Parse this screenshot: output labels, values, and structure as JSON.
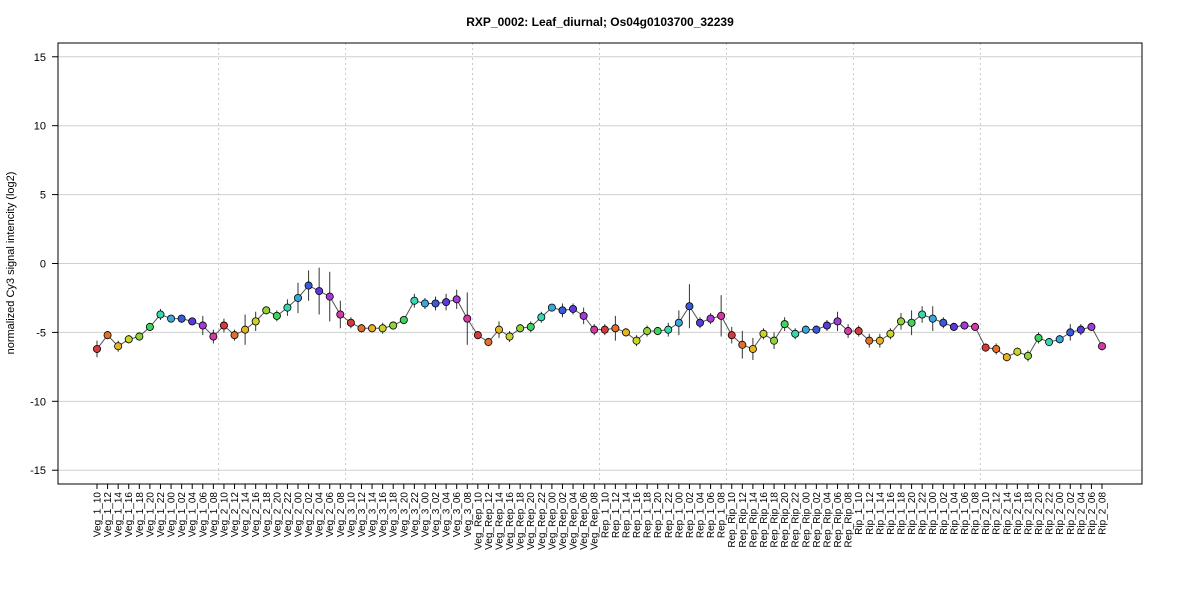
{
  "chart_data": {
    "type": "line",
    "title": "RXP_0002: Leaf_diurnal; Os04g0103700_32239",
    "xlabel": "",
    "ylabel": "normalized Cy3 signal intencity (log2)",
    "ylim": [
      -16,
      16
    ],
    "yticks": [
      -15,
      -10,
      -5,
      0,
      5,
      10,
      15
    ],
    "grid": true,
    "colors": {
      "grid": "#cfcfcf",
      "separator": "#c8c8c8",
      "line": "#555555",
      "errorbar": "#333333",
      "point_outline": "#000000"
    },
    "separators_after_index": [
      11,
      23,
      35,
      47,
      59,
      71,
      83
    ],
    "categories": [
      "Veg_1_10",
      "Veg_1_12",
      "Veg_1_14",
      "Veg_1_16",
      "Veg_1_18",
      "Veg_1_20",
      "Veg_1_22",
      "Veg_1_00",
      "Veg_1_02",
      "Veg_1_04",
      "Veg_1_06",
      "Veg_1_08",
      "Veg_2_10",
      "Veg_2_12",
      "Veg_2_14",
      "Veg_2_16",
      "Veg_2_18",
      "Veg_2_20",
      "Veg_2_22",
      "Veg_2_00",
      "Veg_2_02",
      "Veg_2_04",
      "Veg_2_06",
      "Veg_2_08",
      "Veg_3_10",
      "Veg_3_12",
      "Veg_3_14",
      "Veg_3_16",
      "Veg_3_18",
      "Veg_3_20",
      "Veg_3_22",
      "Veg_3_00",
      "Veg_3_02",
      "Veg_3_04",
      "Veg_3_06",
      "Veg_3_08",
      "Veg_Rep_10",
      "Veg_Rep_12",
      "Veg_Rep_14",
      "Veg_Rep_16",
      "Veg_Rep_18",
      "Veg_Rep_20",
      "Veg_Rep_22",
      "Veg_Rep_00",
      "Veg_Rep_02",
      "Veg_Rep_04",
      "Veg_Rep_06",
      "Veg_Rep_08",
      "Rep_1_10",
      "Rep_1_12",
      "Rep_1_14",
      "Rep_1_16",
      "Rep_1_18",
      "Rep_1_20",
      "Rep_1_22",
      "Rep_1_00",
      "Rep_1_02",
      "Rep_1_04",
      "Rep_1_06",
      "Rep_1_08",
      "Rep_Rip_10",
      "Rep_Rip_12",
      "Rep_Rip_14",
      "Rep_Rip_16",
      "Rep_Rip_18",
      "Rep_Rip_20",
      "Rep_Rip_22",
      "Rep_Rip_00",
      "Rep_Rip_02",
      "Rep_Rip_04",
      "Rep_Rip_06",
      "Rep_Rip_08",
      "Rip_1_10",
      "Rip_1_12",
      "Rip_1_14",
      "Rip_1_16",
      "Rip_1_18",
      "Rip_1_20",
      "Rip_1_22",
      "Rip_1_00",
      "Rip_1_02",
      "Rip_1_04",
      "Rip_1_06",
      "Rip_1_08",
      "Rip_2_10",
      "Rip_2_12",
      "Rip_2_14",
      "Rip_2_16",
      "Rip_2_18",
      "Rip_2_20",
      "Rip_2_22",
      "Rip_2_00",
      "Rip_2_02",
      "Rip_2_04",
      "Rip_2_06",
      "Rip_2_08"
    ],
    "series": [
      {
        "values": [
          -6.2,
          -5.2,
          -6.0,
          -5.5,
          -5.3,
          -4.6,
          -3.7,
          -4.0,
          -4.0,
          -4.2,
          -4.5,
          -5.3,
          -4.5,
          -5.2,
          -4.8,
          -4.2,
          -3.4,
          -3.8,
          -3.2,
          -2.5,
          -1.6,
          -2.0,
          -2.4,
          -3.7,
          -4.3,
          -4.7,
          -4.7,
          -4.7,
          -4.5,
          -4.1,
          -2.7,
          -2.9,
          -2.9,
          -2.8,
          -2.6,
          -4.0,
          -5.2,
          -5.7,
          -4.8,
          -5.3,
          -4.7,
          -4.6,
          -3.9,
          -3.2,
          -3.4,
          -3.3,
          -3.8,
          -4.8,
          -4.8,
          -4.7,
          -5.0,
          -5.6,
          -4.9,
          -4.9,
          -4.8,
          -4.3,
          -3.1,
          -4.3,
          -4.0,
          -3.8,
          -5.2,
          -5.9,
          -6.2,
          -5.1,
          -5.6,
          -4.4,
          -5.1,
          -4.8,
          -4.8,
          -4.5,
          -4.2,
          -4.9,
          -4.9,
          -5.6,
          -5.6,
          -5.1,
          -4.2,
          -4.3,
          -3.7,
          -4.0,
          -4.3,
          -4.6,
          -4.5,
          -4.6,
          -6.1,
          -6.2,
          -6.8,
          -6.4,
          -6.7,
          -5.4,
          -5.7,
          -5.5,
          -5.0,
          -4.8,
          -4.6,
          -6.0
        ],
        "errors": [
          0.6,
          0.3,
          0.4,
          0.3,
          0.3,
          0.3,
          0.4,
          0.2,
          0.3,
          0.2,
          0.7,
          0.5,
          0.5,
          0.4,
          1.1,
          0.7,
          0.3,
          0.4,
          0.6,
          1.1,
          1.1,
          1.7,
          1.8,
          1.0,
          0.4,
          0.3,
          0.3,
          0.4,
          0.3,
          0.3,
          0.5,
          0.4,
          0.5,
          0.6,
          0.7,
          1.9,
          0.3,
          0.3,
          0.6,
          0.4,
          0.3,
          0.4,
          0.4,
          0.2,
          0.5,
          0.4,
          0.6,
          0.4,
          0.4,
          0.9,
          0.3,
          0.4,
          0.4,
          0.3,
          0.5,
          0.9,
          1.6,
          0.4,
          0.4,
          1.5,
          0.6,
          1.0,
          0.8,
          0.4,
          0.6,
          0.5,
          0.4,
          0.3,
          0.3,
          0.4,
          0.7,
          0.5,
          0.4,
          0.5,
          0.5,
          0.4,
          0.6,
          0.9,
          0.6,
          0.9,
          0.4,
          0.3,
          0.3,
          0.3,
          0.3,
          0.4,
          0.3,
          0.3,
          0.4,
          0.4,
          0.3,
          0.3,
          0.6,
          0.4,
          0.3,
          0.3
        ],
        "point_colors": [
          "#d63b3b",
          "#e0702a",
          "#e6b422",
          "#c8d42a",
          "#8fd43a",
          "#3fd45a",
          "#3ad6b0",
          "#3aa6dc",
          "#3a5adc",
          "#5a3adc",
          "#a43ad8",
          "#d43aa6",
          "#d63b3b",
          "#e0702a",
          "#e6b422",
          "#c8d42a",
          "#8fd43a",
          "#3fd45a",
          "#3ad6b0",
          "#3aa6dc",
          "#3a5adc",
          "#5a3adc",
          "#a43ad8",
          "#d43aa6",
          "#d63b3b",
          "#e0702a",
          "#e6b422",
          "#c8d42a",
          "#8fd43a",
          "#3fd45a",
          "#3ad6b0",
          "#3aa6dc",
          "#3a5adc",
          "#5a3adc",
          "#a43ad8",
          "#d43aa6",
          "#d63b3b",
          "#e0702a",
          "#e6b422",
          "#c8d42a",
          "#8fd43a",
          "#3fd45a",
          "#3ad6b0",
          "#3aa6dc",
          "#3a5adc",
          "#5a3adc",
          "#a43ad8",
          "#d43aa6",
          "#d63b3b",
          "#e0702a",
          "#e6b422",
          "#c8d42a",
          "#8fd43a",
          "#3fd45a",
          "#3ad6b0",
          "#3aa6dc",
          "#3a5adc",
          "#5a3adc",
          "#a43ad8",
          "#d43aa6",
          "#d63b3b",
          "#e0702a",
          "#e6b422",
          "#c8d42a",
          "#8fd43a",
          "#3fd45a",
          "#3ad6b0",
          "#3aa6dc",
          "#3a5adc",
          "#5a3adc",
          "#a43ad8",
          "#d43aa6",
          "#d63b3b",
          "#e0702a",
          "#e6b422",
          "#c8d42a",
          "#8fd43a",
          "#3fd45a",
          "#3ad6b0",
          "#3aa6dc",
          "#3a5adc",
          "#5a3adc",
          "#a43ad8",
          "#d43aa6",
          "#d63b3b",
          "#e0702a",
          "#e6b422",
          "#c8d42a",
          "#8fd43a",
          "#3fd45a",
          "#3ad6b0",
          "#3aa6dc",
          "#3a5adc",
          "#5a3adc",
          "#a43ad8",
          "#d43aa6"
        ]
      }
    ]
  }
}
